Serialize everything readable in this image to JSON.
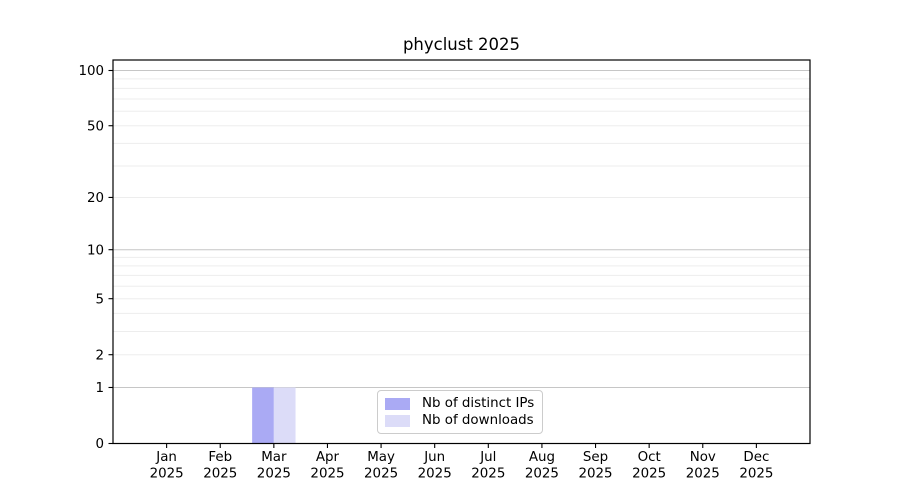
{
  "chart_data": {
    "type": "bar",
    "title": "phyclust 2025",
    "categories": [
      "Jan 2025",
      "Feb 2025",
      "Mar 2025",
      "Apr 2025",
      "May 2025",
      "Jun 2025",
      "Jul 2025",
      "Aug 2025",
      "Sep 2025",
      "Oct 2025",
      "Nov 2025",
      "Dec 2025"
    ],
    "x_tick_months": [
      "Jan",
      "Feb",
      "Mar",
      "Apr",
      "May",
      "Jun",
      "Jul",
      "Aug",
      "Sep",
      "Oct",
      "Nov",
      "Dec"
    ],
    "x_tick_year": "2025",
    "series": [
      {
        "key": "distinct-ips",
        "name": "Nb of distinct IPs",
        "color": "#aaaaf4",
        "values": [
          0,
          0,
          1,
          0,
          0,
          0,
          0,
          0,
          0,
          0,
          0,
          0
        ]
      },
      {
        "key": "downloads",
        "name": "Nb of downloads",
        "color": "#dcdcf8",
        "values": [
          0,
          0,
          1,
          0,
          0,
          0,
          0,
          0,
          0,
          0,
          0,
          0
        ]
      }
    ],
    "y_axis": {
      "scale": "log1p",
      "tick_labels": [
        "0",
        "1",
        "2",
        "5",
        "10",
        "20",
        "50",
        "100"
      ],
      "major_gridlines": [
        1,
        10,
        100
      ],
      "minor_gridlines": [
        2,
        3,
        4,
        5,
        6,
        7,
        8,
        9,
        20,
        30,
        40,
        50,
        60,
        70,
        80,
        90
      ],
      "ylim": [
        0,
        113
      ]
    },
    "xlabel": "",
    "ylabel": "",
    "grid": "horizontal-only",
    "legend": {
      "position": "lower center",
      "entries": [
        "Nb of distinct IPs",
        "Nb of downloads"
      ]
    },
    "style": {
      "background": "#ffffff",
      "spine_color": "#000000",
      "text_color": "#000000",
      "grid_minor_color": "#ededed",
      "grid_major_color": "#c6c6c6",
      "legend_border_color": "#cccccc"
    }
  }
}
